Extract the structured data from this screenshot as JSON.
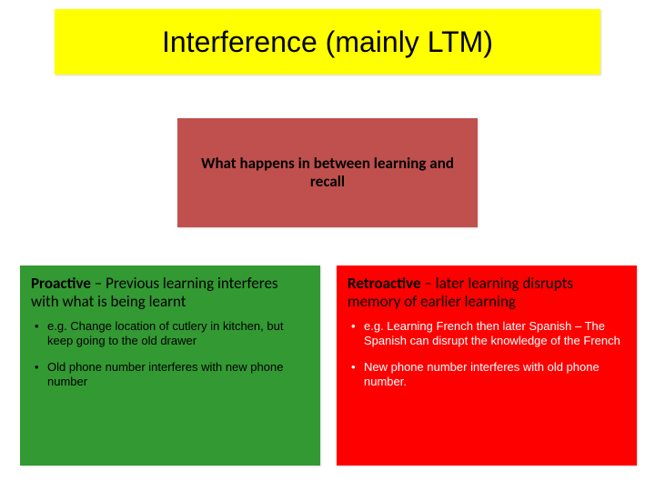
{
  "title": "Interference (mainly LTM)",
  "center": {
    "text": "What happens in between learning and recall",
    "bg": "#c0504d",
    "fontsize": 17
  },
  "left": {
    "bg": "#339933",
    "term": "Proactive",
    "term_rest": " – Previous learning interferes with what is being learnt",
    "bullets": [
      "e.g. Change location of cutlery in kitchen, but keep going to the old drawer",
      "Old phone number interferes with new phone number"
    ],
    "bullet_color": "#000000"
  },
  "right": {
    "bg": "#ff0000",
    "term": "Retroactive",
    "term_rest": " – later learning disrupts memory of earlier learning",
    "bullets": [
      "e.g. Learning French then later Spanish – The Spanish can disrupt the knowledge of the French",
      "New phone number interferes with old phone number."
    ],
    "bullet_color": "#ffffff"
  },
  "title_bg": "#ffff00",
  "slide_bg": "#ffffff",
  "title_fontsize": 32
}
